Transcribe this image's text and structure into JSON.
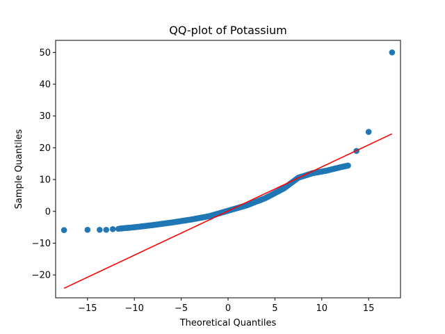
{
  "chart_data": {
    "type": "scatter",
    "title": "QQ-plot of Potassium",
    "xlabel": "Theoretical Quantiles",
    "ylabel": "Sample Quantiles",
    "xlim": [
      -18.4,
      18.4
    ],
    "ylim": [
      -27.2,
      53.8
    ],
    "xticks": [
      -15,
      -10,
      -5,
      0,
      5,
      10,
      15
    ],
    "yticks": [
      -20,
      -10,
      0,
      10,
      20,
      30,
      40,
      50
    ],
    "xtick_labels": [
      "−15",
      "−10",
      "−5",
      "0",
      "5",
      "10",
      "15"
    ],
    "ytick_labels": [
      "−20",
      "−10",
      "0",
      "10",
      "20",
      "30",
      "40",
      "50"
    ],
    "grid": false,
    "colors": {
      "points": "#1f77b4",
      "reference_line": "#ff0000"
    },
    "series": [
      {
        "type": "scatter",
        "curve_points": [
          [
            -11.5,
            -5.4
          ],
          [
            -10,
            -5.0
          ],
          [
            -8,
            -4.3
          ],
          [
            -6,
            -3.5
          ],
          [
            -4,
            -2.6
          ],
          [
            -2,
            -1.5
          ],
          [
            0,
            0.2
          ],
          [
            2,
            1.9
          ],
          [
            4,
            4.2
          ],
          [
            6,
            7.3
          ],
          [
            7.5,
            10.6
          ],
          [
            9,
            12.0
          ],
          [
            10.5,
            12.8
          ],
          [
            12,
            13.9
          ],
          [
            12.8,
            14.4
          ]
        ],
        "outlier_points": [
          [
            -17.5,
            -5.9
          ],
          [
            -15,
            -5.8
          ],
          [
            -13.7,
            -5.8
          ],
          [
            -13,
            -5.8
          ],
          [
            -12.3,
            -5.6
          ],
          [
            -11.7,
            -5.5
          ],
          [
            13.7,
            19.0
          ],
          [
            15,
            25.0
          ],
          [
            17.5,
            50.0
          ]
        ]
      },
      {
        "type": "line",
        "points": [
          [
            -17.5,
            -24.2
          ],
          [
            17.5,
            24.4
          ]
        ]
      }
    ]
  }
}
